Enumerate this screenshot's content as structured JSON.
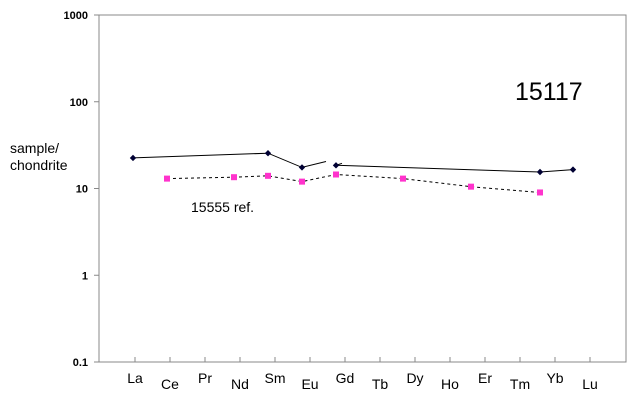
{
  "chart_data": {
    "type": "line",
    "scale": "log",
    "ylim": [
      0.1,
      1000
    ],
    "y_ticks": [
      {
        "value": 1000,
        "label": "1000"
      },
      {
        "value": 100,
        "label": "100"
      },
      {
        "value": 10,
        "label": "10"
      },
      {
        "value": 1,
        "label": "1"
      },
      {
        "value": 0.1,
        "label": "0.1"
      }
    ],
    "categories": [
      "La",
      "Ce",
      "Pr",
      "Nd",
      "Sm",
      "Eu",
      "Gd",
      "Tb",
      "Dy",
      "Ho",
      "Er",
      "Tm",
      "Yb",
      "Lu"
    ],
    "ylabel_line1": "sample/",
    "ylabel_line2": "chondrite",
    "annotation": "15117",
    "grid": false,
    "series": [
      {
        "name": "",
        "color": "#000033",
        "marker": "diamond",
        "line": "solid",
        "segments": [
          [
            {
              "x": "La",
              "y": 22.5
            },
            {
              "x": "Sm",
              "y": 25.5
            },
            {
              "x": "Eu",
              "y": 17.5
            },
            {
              "x": "Eu-Gd gap start",
              "y": 20.5
            }
          ],
          [
            {
              "x": "Eu-Gd gap end",
              "y": 19.5
            },
            {
              "x": "Gd",
              "y": 18.5
            },
            {
              "x": "Tm",
              "y": 15.5
            },
            {
              "x": "Yb",
              "y": 16.5
            }
          ]
        ],
        "points": [
          {
            "x": "La",
            "y": 22.5
          },
          {
            "x": "Sm",
            "y": 25.5
          },
          {
            "x": "Eu",
            "y": 17.5
          },
          {
            "x": "Gd",
            "y": 18.5
          },
          {
            "x": "Tm",
            "y": 15.5
          },
          {
            "x": "Yb",
            "y": 16.5
          }
        ]
      },
      {
        "name": "15555 ref.",
        "color": "#ff33cc",
        "line_color": "#000000",
        "marker": "square",
        "line": "dashed",
        "points": [
          {
            "x": "Ce",
            "y": 13.0
          },
          {
            "x": "Nd",
            "y": 13.5
          },
          {
            "x": "Sm",
            "y": 14.0
          },
          {
            "x": "Eu",
            "y": 12.0
          },
          {
            "x": "Gd",
            "y": 14.5
          },
          {
            "x": "Dy",
            "y": 13.0
          },
          {
            "x": "Er",
            "y": 10.5
          },
          {
            "x": "Tm",
            "y": 9.0
          }
        ]
      }
    ]
  }
}
